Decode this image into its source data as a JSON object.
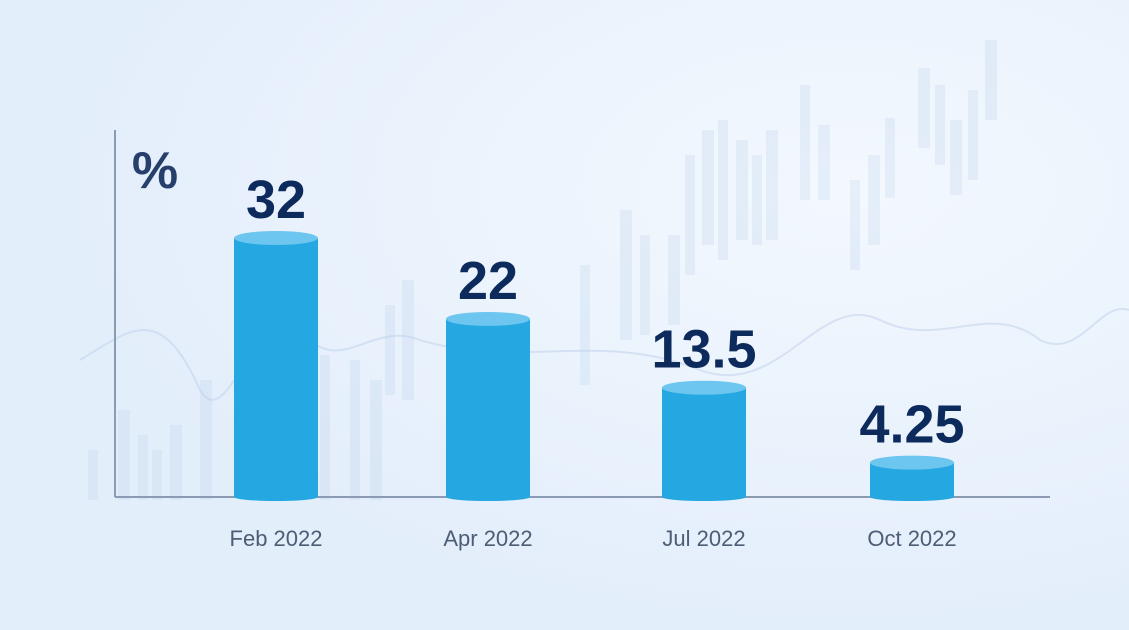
{
  "colors": {
    "background": "#e6f1fc",
    "bar": "#25a8e2",
    "bar_top": "#6cc6ef",
    "value_text": "#0d2a5c",
    "axis": "#8b9bb4"
  },
  "chart_data": {
    "type": "bar",
    "ylabel": "%",
    "categories": [
      "Feb 2022",
      "Apr 2022",
      "Jul 2022",
      "Oct 2022"
    ],
    "values": [
      32,
      22,
      13.5,
      4.25
    ],
    "data_labels": [
      "32",
      "22",
      "13.5",
      "4.25"
    ],
    "ylim": [
      0,
      32
    ],
    "grid": false,
    "legend": "none"
  }
}
